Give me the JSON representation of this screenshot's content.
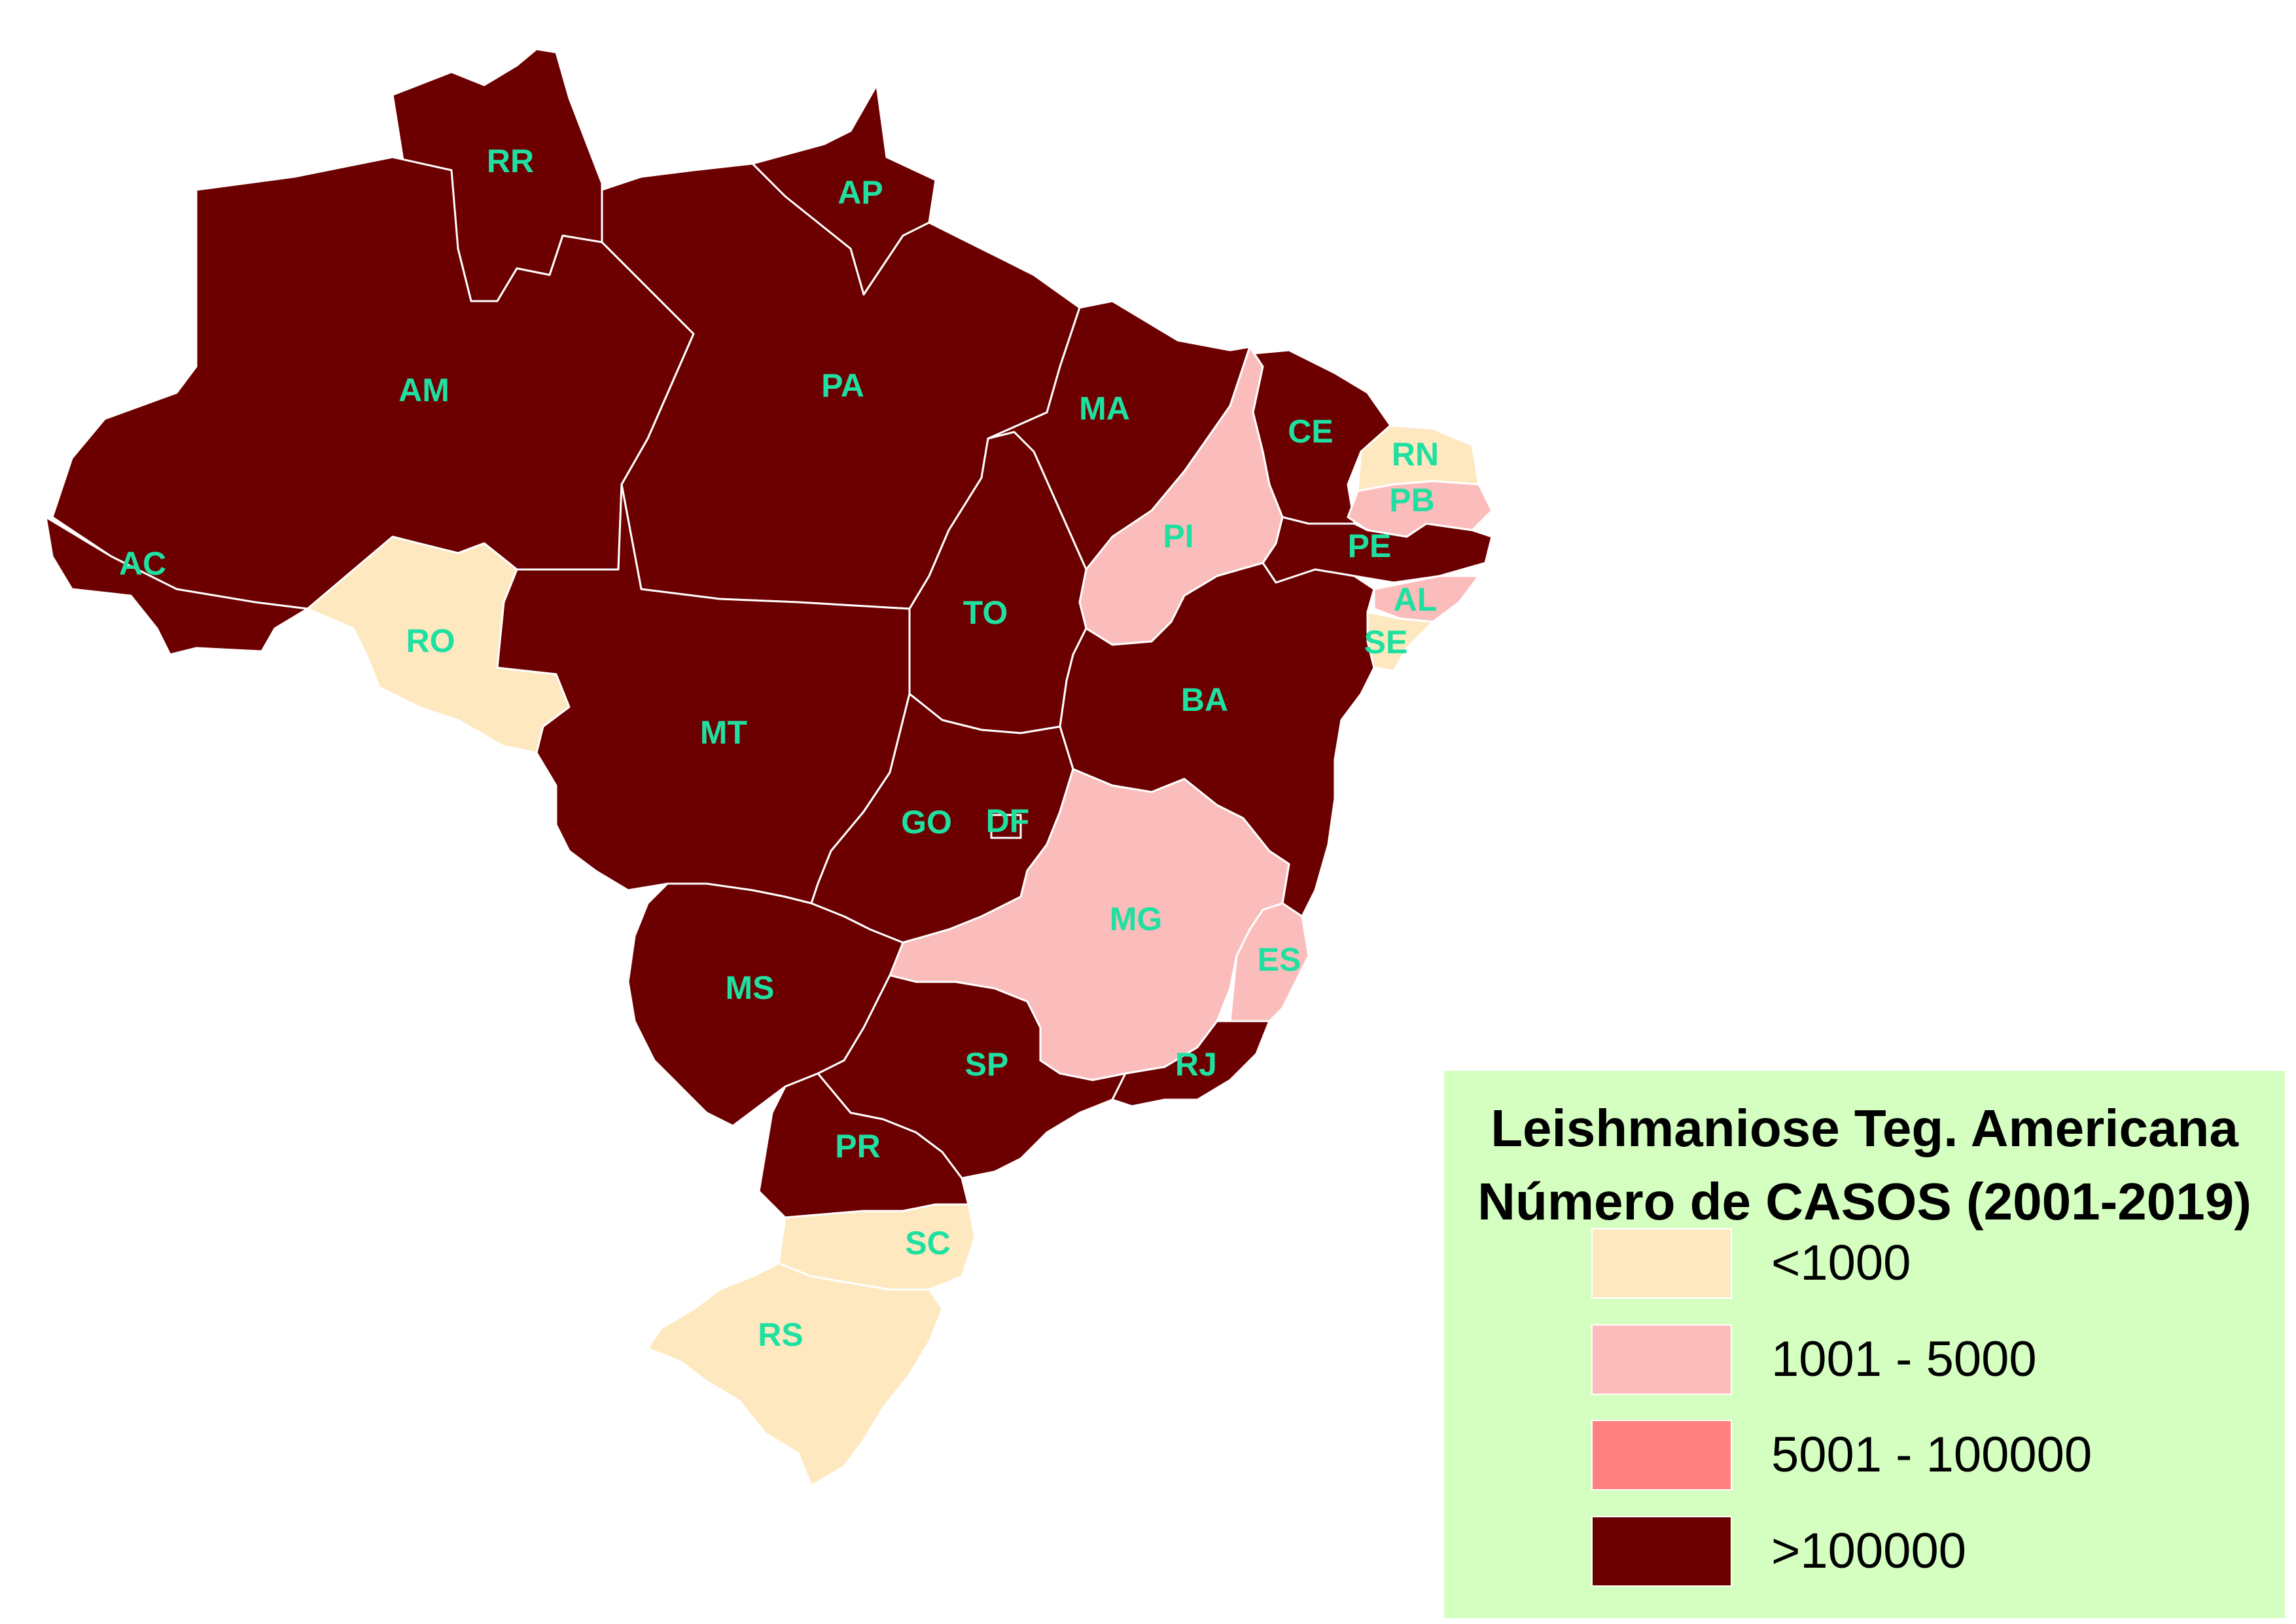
{
  "legend": {
    "title_line1": "Leishmaniose Teg. Americana",
    "title_line2": "Número de CASOS (2001-2019)",
    "classes": [
      {
        "label": "<1000",
        "color": "#fde8c0"
      },
      {
        "label": "1001 - 5000",
        "color": "#fbbcbc"
      },
      {
        "label": "5001 - 100000",
        "color": "#fe8080"
      },
      {
        "label": ">100000",
        "color": "#6c0000"
      }
    ]
  },
  "states": [
    {
      "code": "RR",
      "class": 3
    },
    {
      "code": "AP",
      "class": 3
    },
    {
      "code": "AM",
      "class": 3
    },
    {
      "code": "PA",
      "class": 3
    },
    {
      "code": "MA",
      "class": 3
    },
    {
      "code": "CE",
      "class": 3
    },
    {
      "code": "RN",
      "class": 0
    },
    {
      "code": "PB",
      "class": 1
    },
    {
      "code": "PE",
      "class": 3
    },
    {
      "code": "PI",
      "class": 1
    },
    {
      "code": "AL",
      "class": 1
    },
    {
      "code": "SE",
      "class": 0
    },
    {
      "code": "AC",
      "class": 3
    },
    {
      "code": "RO",
      "class": 0
    },
    {
      "code": "TO",
      "class": 3
    },
    {
      "code": "BA",
      "class": 3
    },
    {
      "code": "MT",
      "class": 3
    },
    {
      "code": "GO",
      "class": 3
    },
    {
      "code": "DF",
      "class": 3
    },
    {
      "code": "MG",
      "class": 1
    },
    {
      "code": "ES",
      "class": 1
    },
    {
      "code": "MS",
      "class": 3
    },
    {
      "code": "SP",
      "class": 3
    },
    {
      "code": "RJ",
      "class": 3
    },
    {
      "code": "PR",
      "class": 3
    },
    {
      "code": "SC",
      "class": 0
    },
    {
      "code": "RS",
      "class": 0
    }
  ]
}
